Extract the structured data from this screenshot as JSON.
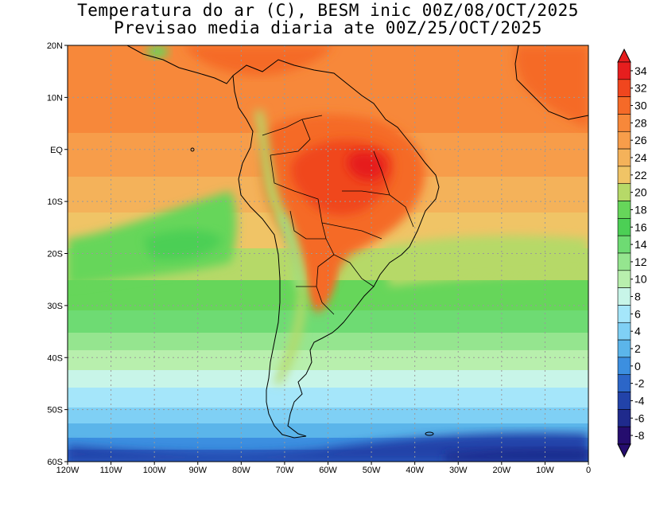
{
  "title": {
    "line1": "Temperatura do ar (C), BESM inic 00Z/08/OCT/2025",
    "line2": "Previsao media diaria ate 00Z/25/OCT/2025"
  },
  "map": {
    "region": "South America and adjacent Atlantic/Pacific",
    "longitude_range": [
      -120,
      0
    ],
    "latitude_range": [
      -60,
      20
    ],
    "x_tick_labels": [
      "120W",
      "110W",
      "100W",
      "90W",
      "80W",
      "70W",
      "60W",
      "50W",
      "40W",
      "30W",
      "20W",
      "10W",
      "0"
    ],
    "y_tick_labels": [
      "20N",
      "10N",
      "EQ",
      "10S",
      "20S",
      "30S",
      "40S",
      "50S",
      "60S"
    ]
  },
  "colorbar": {
    "labels": [
      "34",
      "32",
      "30",
      "28",
      "26",
      "24",
      "22",
      "20",
      "18",
      "16",
      "14",
      "12",
      "10",
      "8",
      "6",
      "4",
      "2",
      "0",
      "-2",
      "-4",
      "-6",
      "-8"
    ],
    "colors": [
      "#e61e1e",
      "#f0461e",
      "#f56a28",
      "#f7883a",
      "#f79d4a",
      "#f4b25a",
      "#f0c466",
      "#b6d968",
      "#66d65a",
      "#4ccf55",
      "#6edb73",
      "#95e58f",
      "#b8efad",
      "#c8f5e8",
      "#a5e6fa",
      "#7fd0f5",
      "#5bb5ea",
      "#3c8fe0",
      "#2c66c8",
      "#2243a9",
      "#1f2a8c",
      "#250d6e"
    ],
    "ticks_top_to_bottom": [
      34,
      32,
      30,
      28,
      26,
      24,
      22,
      20,
      18,
      16,
      14,
      12,
      10,
      8,
      6,
      4,
      2,
      0,
      -2,
      -4,
      -6,
      -8
    ]
  }
}
